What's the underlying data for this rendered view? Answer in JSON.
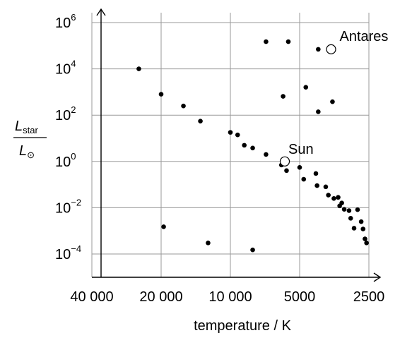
{
  "chart_data": {
    "type": "scatter",
    "x_scale": "log-reversed",
    "y_scale": "log",
    "xlabel": "temperature / K",
    "ylabel_numerator": "L",
    "ylabel_numerator_sub": "star",
    "ylabel_denominator": "L",
    "ylabel_denominator_sub": "⊙",
    "x_ticks": [
      {
        "value": 40000,
        "label": "40 000"
      },
      {
        "value": 20000,
        "label": "20 000"
      },
      {
        "value": 10000,
        "label": "10 000"
      },
      {
        "value": 5000,
        "label": "5000"
      },
      {
        "value": 2500,
        "label": "2500"
      }
    ],
    "y_ticks": [
      {
        "value": 0.0001,
        "base": "10",
        "exp": "−4"
      },
      {
        "value": 0.01,
        "base": "10",
        "exp": "−2"
      },
      {
        "value": 1,
        "base": "10",
        "exp": "0"
      },
      {
        "value": 100,
        "base": "10",
        "exp": "2"
      },
      {
        "value": 10000,
        "base": "10",
        "exp": "4"
      },
      {
        "value": 1000000,
        "base": "10",
        "exp": "6"
      }
    ],
    "xlim": [
      40000,
      2500
    ],
    "ylim": [
      0.0001,
      1000000
    ],
    "grid": true,
    "points": [
      {
        "x": 25000,
        "y": 10000
      },
      {
        "x": 20000,
        "y": 800
      },
      {
        "x": 16000,
        "y": 250
      },
      {
        "x": 13500,
        "y": 55
      },
      {
        "x": 10000,
        "y": 18
      },
      {
        "x": 9300,
        "y": 14
      },
      {
        "x": 8700,
        "y": 5
      },
      {
        "x": 8000,
        "y": 3.8
      },
      {
        "x": 7000,
        "y": 2
      },
      {
        "x": 6000,
        "y": 0.7
      },
      {
        "x": 5700,
        "y": 0.4
      },
      {
        "x": 5000,
        "y": 0.55
      },
      {
        "x": 4800,
        "y": 0.17
      },
      {
        "x": 4250,
        "y": 0.3
      },
      {
        "x": 4200,
        "y": 0.09
      },
      {
        "x": 3850,
        "y": 0.08
      },
      {
        "x": 3750,
        "y": 0.035
      },
      {
        "x": 3550,
        "y": 0.025
      },
      {
        "x": 3400,
        "y": 0.028
      },
      {
        "x": 3350,
        "y": 0.012
      },
      {
        "x": 3280,
        "y": 0.016
      },
      {
        "x": 3200,
        "y": 0.0085
      },
      {
        "x": 3050,
        "y": 0.0075
      },
      {
        "x": 3000,
        "y": 0.0035
      },
      {
        "x": 2900,
        "y": 0.0013
      },
      {
        "x": 2800,
        "y": 0.0082
      },
      {
        "x": 2700,
        "y": 0.0025
      },
      {
        "x": 2650,
        "y": 0.0012
      },
      {
        "x": 2600,
        "y": 0.00045
      },
      {
        "x": 2560,
        "y": 0.0003
      },
      {
        "x": 19500,
        "y": 0.0015
      },
      {
        "x": 12500,
        "y": 0.0003
      },
      {
        "x": 8000,
        "y": 0.00015
      },
      {
        "x": 7000,
        "y": 150000
      },
      {
        "x": 5600,
        "y": 150000
      },
      {
        "x": 4150,
        "y": 70000
      },
      {
        "x": 5900,
        "y": 650
      },
      {
        "x": 4700,
        "y": 1600
      },
      {
        "x": 4150,
        "y": 140
      },
      {
        "x": 3600,
        "y": 380
      }
    ],
    "labeled_points": [
      {
        "name": "Antares",
        "x": 3650,
        "y": 70000
      },
      {
        "name": "Sun",
        "x": 5800,
        "y": 1
      }
    ]
  }
}
